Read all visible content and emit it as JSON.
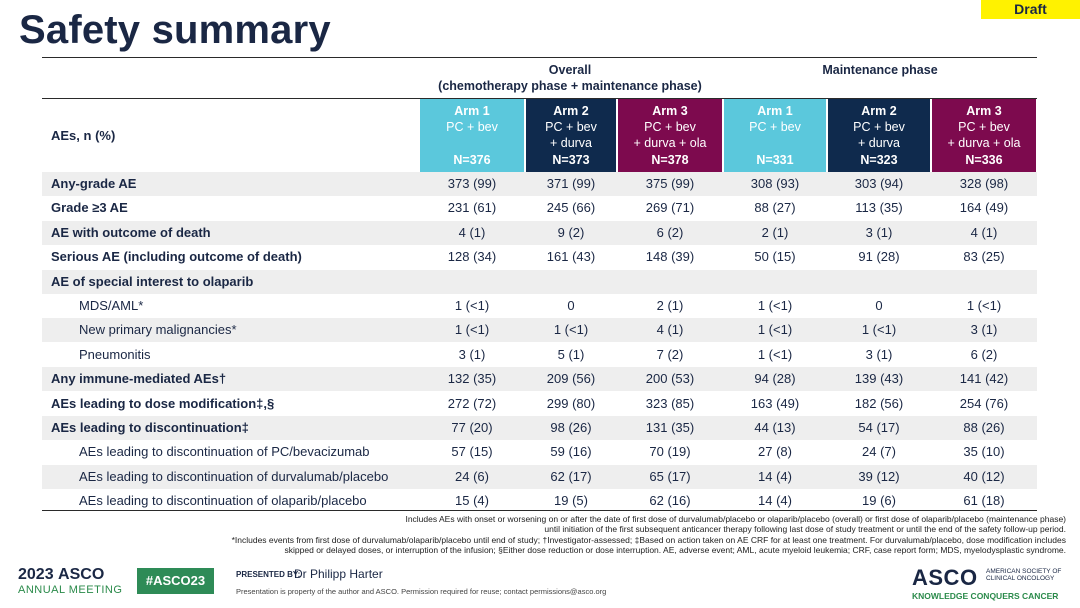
{
  "draft_label": "Draft",
  "title": "Safety summary",
  "groups": {
    "overall_line1": "Overall",
    "overall_line2": "(chemotherapy phase + maintenance phase)",
    "maintenance": "Maintenance phase"
  },
  "row_header_label": "AEs, n (%)",
  "arms": [
    {
      "name": "Arm 1",
      "desc1": "PC + bev",
      "desc2": "",
      "n": "N=376"
    },
    {
      "name": "Arm 2",
      "desc1": "PC + bev",
      "desc2": "+ durva",
      "n": "N=373"
    },
    {
      "name": "Arm 3",
      "desc1": "PC + bev",
      "desc2": "+ durva + ola",
      "n": "N=378"
    },
    {
      "name": "Arm 1",
      "desc1": "PC + bev",
      "desc2": "",
      "n": "N=331"
    },
    {
      "name": "Arm 2",
      "desc1": "PC + bev",
      "desc2": "+ durva",
      "n": "N=323"
    },
    {
      "name": "Arm 3",
      "desc1": "PC + bev",
      "desc2": "+ durva + ola",
      "n": "N=336"
    }
  ],
  "arm_colors": [
    "#5bc8dc",
    "#0f2a4d",
    "#7d0a4e",
    "#5bc8dc",
    "#0f2a4d",
    "#7d0a4e"
  ],
  "rows": [
    {
      "label": "Any-grade AE",
      "bold": true,
      "indent": false,
      "values": [
        "373 (99)",
        "371 (99)",
        "375 (99)",
        "308 (93)",
        "303 (94)",
        "328 (98)"
      ]
    },
    {
      "label": "Grade ≥3 AE",
      "bold": true,
      "indent": false,
      "values": [
        "231 (61)",
        "245 (66)",
        "269 (71)",
        "88 (27)",
        "113 (35)",
        "164 (49)"
      ]
    },
    {
      "label": "AE with outcome of death",
      "bold": true,
      "indent": false,
      "values": [
        "4 (1)",
        "9 (2)",
        "6 (2)",
        "2 (1)",
        "3 (1)",
        "4 (1)"
      ]
    },
    {
      "label": "Serious AE (including outcome of death)",
      "bold": true,
      "indent": false,
      "values": [
        "128 (34)",
        "161 (43)",
        "148 (39)",
        "50 (15)",
        "91 (28)",
        "83 (25)"
      ]
    },
    {
      "label": "AE of special interest to olaparib",
      "bold": true,
      "indent": false,
      "values": [
        "",
        "",
        "",
        "",
        "",
        ""
      ]
    },
    {
      "label": "MDS/AML*",
      "bold": false,
      "indent": true,
      "values": [
        "1 (<1)",
        "0",
        "2 (1)",
        "1 (<1)",
        "0",
        "1 (<1)"
      ]
    },
    {
      "label": "New primary malignancies*",
      "bold": false,
      "indent": true,
      "values": [
        "1 (<1)",
        "1 (<1)",
        "4 (1)",
        "1 (<1)",
        "1 (<1)",
        "3 (1)"
      ]
    },
    {
      "label": "Pneumonitis",
      "bold": false,
      "indent": true,
      "values": [
        "3 (1)",
        "5 (1)",
        "7 (2)",
        "1 (<1)",
        "3 (1)",
        "6 (2)"
      ]
    },
    {
      "label": "Any immune-mediated AEs†",
      "bold": true,
      "indent": false,
      "values": [
        "132 (35)",
        "209 (56)",
        "200 (53)",
        "94 (28)",
        "139 (43)",
        "141 (42)"
      ]
    },
    {
      "label": "AEs leading to dose modification‡,§",
      "bold": true,
      "indent": false,
      "values": [
        "272 (72)",
        "299 (80)",
        "323 (85)",
        "163 (49)",
        "182 (56)",
        "254 (76)"
      ]
    },
    {
      "label": "AEs leading to discontinuation‡",
      "bold": true,
      "indent": false,
      "values": [
        "77 (20)",
        "98 (26)",
        "131 (35)",
        "44 (13)",
        "54 (17)",
        "88 (26)"
      ]
    },
    {
      "label": "AEs leading to discontinuation of PC/bevacizumab",
      "bold": false,
      "indent": true,
      "values": [
        "57 (15)",
        "59 (16)",
        "70 (19)",
        "27 (8)",
        "24 (7)",
        "35 (10)"
      ]
    },
    {
      "label": "AEs leading to discontinuation of durvalumab/placebo",
      "bold": false,
      "indent": true,
      "values": [
        "24 (6)",
        "62 (17)",
        "65 (17)",
        "14 (4)",
        "39 (12)",
        "40 (12)"
      ]
    },
    {
      "label": "AEs leading to discontinuation of olaparib/placebo",
      "bold": false,
      "indent": true,
      "values": [
        "15 (4)",
        "19 (5)",
        "62 (16)",
        "14 (4)",
        "19 (6)",
        "61 (18)"
      ]
    }
  ],
  "footnotes": [
    "Includes  AEs with onset or worsening  on or after the date of first dose of durvalumab/placebo  or olaparib/placebo (overall)  or first dose of olaparib/placebo (maintenance  phase)",
    "until initiation of the first subsequent  anticancer therapy following last dose of study treatment or until the end of the safety follow-up  period.",
    "*Includes  events from first dose of durvalumab/olaparib/placebo  until end of study; †Investigator-assessed;  ‡Based on action taken on AE CRF for at least one treatment.  For durvalumab/placebo,  dose modification includes",
    "skipped or delayed doses, or interruption  of the infusion;  §Either dose reduction  or dose interruption.  AE, adverse event;  AML, acute myeloid leukemia;  CRF, case report form;  MDS, myelodysplastic  syndrome."
  ],
  "footer": {
    "meeting_year": "2023",
    "meeting_brand": "ASCO",
    "meeting_sub": "ANNUAL MEETING",
    "hashtag": "#ASCO23",
    "presented_by": "PRESENTED BY:",
    "presenter": "Dr Philipp Harter",
    "property_note": "Presentation is property of the author and ASCO. Permission required for reuse; contact permissions@asco.org",
    "asco_logo": "ASCO",
    "society": "AMERICAN SOCIETY OF CLINICAL ONCOLOGY",
    "tagline": "KNOWLEDGE CONQUERS CANCER"
  }
}
